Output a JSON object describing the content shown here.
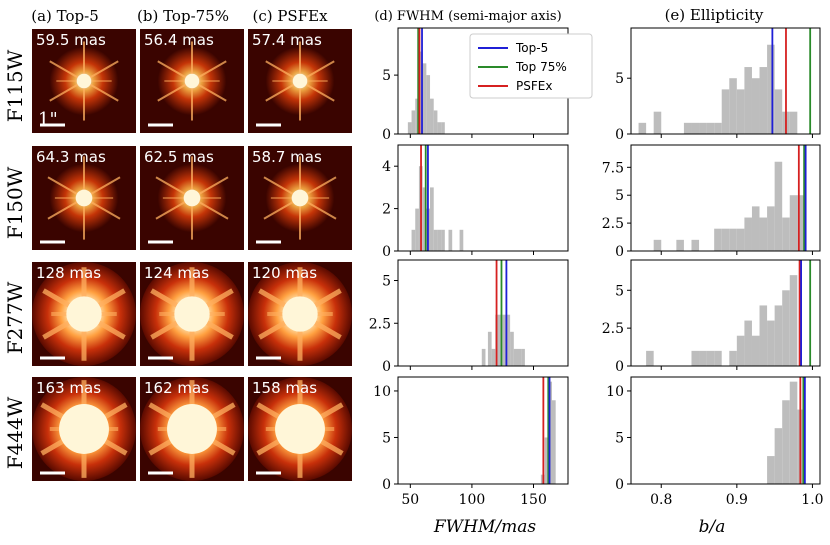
{
  "column_titles": {
    "a": "(a) Top-5",
    "b": "(b) Top-75%",
    "c": "(c) PSFEx",
    "d": "(d) FWHM (semi-major axis)",
    "e": "(e) Ellipticity"
  },
  "scale_bar_label": "1\"",
  "filters": [
    "F115W",
    "F150W",
    "F277W",
    "F444W"
  ],
  "stamp_fwhm_labels": [
    [
      "59.5 mas",
      "56.4 mas",
      "57.4 mas"
    ],
    [
      "64.3 mas",
      "62.5 mas",
      "58.7 mas"
    ],
    [
      "128 mas",
      "124 mas",
      "120 mas"
    ],
    [
      "163 mas",
      "162 mas",
      "158 mas"
    ]
  ],
  "legend": [
    {
      "name": "Top-5",
      "color": "#1f1fd6"
    },
    {
      "name": "Top 75%",
      "color": "#2a8a2a"
    },
    {
      "name": "PSFEx",
      "color": "#d62020"
    }
  ],
  "colors": {
    "hist": "#bdbdbd",
    "stamp_bg": "#3a0400",
    "stamp_core": "#fff6d8"
  },
  "chart_data": [
    {
      "type": "histogram",
      "panel": "d",
      "xlabel": "FWHM/mas",
      "xlim": [
        40,
        178
      ],
      "xticks": [
        50,
        100,
        150
      ],
      "rows": [
        {
          "filter": "F115W",
          "ylim": [
            0,
            9
          ],
          "yticks": [
            0,
            5
          ],
          "bins": [
            [
              48,
              51,
              1
            ],
            [
              51,
              54,
              2
            ],
            [
              54,
              57,
              3
            ],
            [
              57,
              60,
              7
            ],
            [
              60,
              63,
              6
            ],
            [
              63,
              66,
              5
            ],
            [
              66,
              69,
              3
            ],
            [
              69,
              72,
              2
            ],
            [
              72,
              75,
              1
            ],
            [
              75,
              78,
              1
            ]
          ],
          "lines": {
            "Top-5": 59.5,
            "Top 75%": 56.4,
            "PSFEx": 57.4
          }
        },
        {
          "filter": "F150W",
          "ylim": [
            0,
            5
          ],
          "yticks": [
            0,
            2,
            4
          ],
          "bins": [
            [
              51,
              54,
              1
            ],
            [
              54,
              57,
              2
            ],
            [
              57,
              60,
              4
            ],
            [
              60,
              63,
              3
            ],
            [
              63,
              66,
              2
            ],
            [
              66,
              69,
              3
            ],
            [
              69,
              72,
              1
            ],
            [
              72,
              75,
              1
            ],
            [
              75,
              78,
              1
            ],
            [
              81,
              84,
              1
            ],
            [
              90,
              93,
              1
            ]
          ],
          "lines": {
            "Top-5": 64.3,
            "Top 75%": 62.5,
            "PSFEx": 58.7
          }
        },
        {
          "filter": "F277W",
          "ylim": [
            0,
            6.2
          ],
          "yticks": [
            0.0,
            2.5,
            5.0
          ],
          "bins": [
            [
              108,
              111,
              1
            ],
            [
              113,
              116,
              2
            ],
            [
              116,
              119,
              1
            ],
            [
              119,
              122,
              3
            ],
            [
              122,
              125,
              3
            ],
            [
              125,
              128,
              3
            ],
            [
              128,
              131,
              3
            ],
            [
              131,
              134,
              2
            ],
            [
              134,
              137,
              1
            ],
            [
              137,
              140,
              1
            ],
            [
              140,
              143,
              1
            ]
          ],
          "lines": {
            "Top-5": 128,
            "Top 75%": 124,
            "PSFEx": 120
          }
        },
        {
          "filter": "F444W",
          "ylim": [
            0,
            11.5
          ],
          "yticks": [
            0,
            5,
            10
          ],
          "bins": [
            [
              156,
              159,
              1
            ],
            [
              159,
              162,
              5
            ],
            [
              162,
              165,
              11
            ],
            [
              165,
              168,
              9
            ]
          ],
          "lines": {
            "Top-5": 163,
            "Top 75%": 162,
            "PSFEx": 158
          }
        }
      ]
    },
    {
      "type": "histogram",
      "panel": "e",
      "xlabel": "b/a",
      "xlim": [
        0.76,
        1.01
      ],
      "xticks": [
        0.8,
        0.9,
        1.0
      ],
      "rows": [
        {
          "filter": "F115W",
          "ylim": [
            0,
            9.5
          ],
          "yticks": [
            0,
            5
          ],
          "bins": [
            [
              0.77,
              0.78,
              1
            ],
            [
              0.79,
              0.8,
              2
            ],
            [
              0.83,
              0.84,
              1
            ],
            [
              0.84,
              0.85,
              1
            ],
            [
              0.85,
              0.86,
              1
            ],
            [
              0.86,
              0.87,
              1
            ],
            [
              0.87,
              0.88,
              1
            ],
            [
              0.88,
              0.89,
              4
            ],
            [
              0.89,
              0.9,
              5
            ],
            [
              0.9,
              0.91,
              4
            ],
            [
              0.91,
              0.92,
              6
            ],
            [
              0.92,
              0.93,
              5
            ],
            [
              0.93,
              0.94,
              6
            ],
            [
              0.94,
              0.95,
              8
            ],
            [
              0.95,
              0.96,
              4
            ],
            [
              0.96,
              0.97,
              2
            ],
            [
              0.97,
              0.98,
              2
            ]
          ],
          "lines": {
            "Top-5": 0.947,
            "Top 75%": 0.997,
            "PSFEx": 0.965
          }
        },
        {
          "filter": "F150W",
          "ylim": [
            0,
            9.5
          ],
          "yticks": [
            0.0,
            2.5,
            5.0,
            7.5
          ],
          "bins": [
            [
              0.79,
              0.8,
              1
            ],
            [
              0.82,
              0.83,
              1
            ],
            [
              0.84,
              0.85,
              1
            ],
            [
              0.87,
              0.88,
              2
            ],
            [
              0.88,
              0.89,
              2
            ],
            [
              0.89,
              0.9,
              2
            ],
            [
              0.9,
              0.91,
              2
            ],
            [
              0.91,
              0.92,
              3
            ],
            [
              0.92,
              0.93,
              4
            ],
            [
              0.93,
              0.94,
              3
            ],
            [
              0.94,
              0.95,
              4
            ],
            [
              0.95,
              0.96,
              8
            ],
            [
              0.96,
              0.97,
              3
            ],
            [
              0.97,
              0.98,
              5
            ],
            [
              0.98,
              0.99,
              5
            ]
          ],
          "lines": {
            "Top-5": 0.991,
            "Top 75%": 0.989,
            "PSFEx": 0.982
          }
        },
        {
          "filter": "F277W",
          "ylim": [
            0,
            7
          ],
          "yticks": [
            0.0,
            2.5,
            5.0
          ],
          "bins": [
            [
              0.78,
              0.79,
              1
            ],
            [
              0.84,
              0.85,
              1
            ],
            [
              0.85,
              0.86,
              1
            ],
            [
              0.86,
              0.87,
              1
            ],
            [
              0.87,
              0.88,
              1
            ],
            [
              0.89,
              0.9,
              1
            ],
            [
              0.9,
              0.91,
              2
            ],
            [
              0.91,
              0.92,
              3
            ],
            [
              0.92,
              0.93,
              2
            ],
            [
              0.93,
              0.94,
              4
            ],
            [
              0.94,
              0.95,
              3
            ],
            [
              0.95,
              0.96,
              4
            ],
            [
              0.96,
              0.97,
              5
            ],
            [
              0.97,
              0.98,
              6
            ]
          ],
          "lines": {
            "Top-5": 0.985,
            "Top 75%": 0.997,
            "PSFEx": 0.983
          }
        },
        {
          "filter": "F444W",
          "ylim": [
            0,
            11.5
          ],
          "yticks": [
            0,
            5,
            10
          ],
          "bins": [
            [
              0.94,
              0.95,
              3
            ],
            [
              0.95,
              0.96,
              6
            ],
            [
              0.96,
              0.97,
              9
            ],
            [
              0.97,
              0.98,
              11
            ],
            [
              0.98,
              0.99,
              8
            ]
          ],
          "lines": {
            "Top-5": 0.99,
            "Top 75%": 0.988,
            "PSFEx": 0.984
          }
        }
      ]
    }
  ]
}
